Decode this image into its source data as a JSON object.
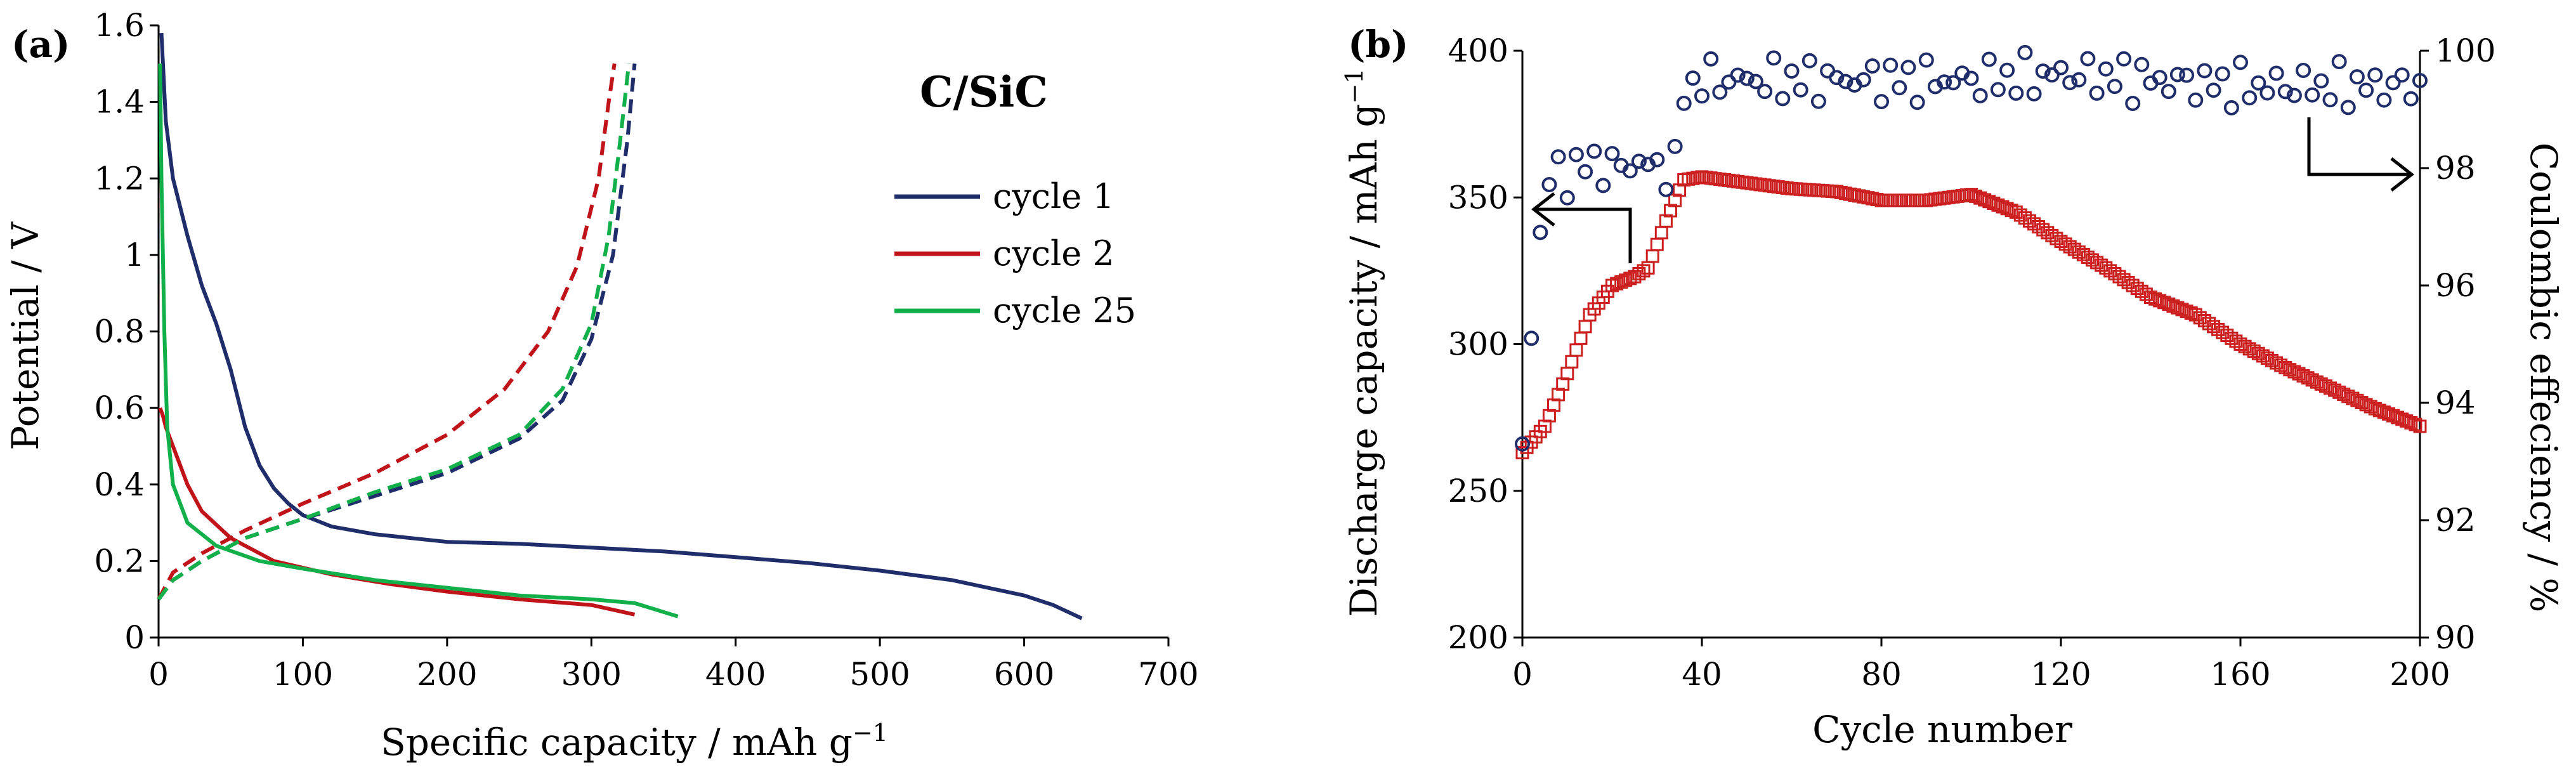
{
  "figure": {
    "panel_a": {
      "label": "(a)",
      "title": "C/SiC",
      "xlabel_main": "Specific capacity / mAh g",
      "xlabel_sup": "−1",
      "ylabel": "Potential / V",
      "legend": [
        "cycle 1",
        "cycle 2",
        "cycle 25"
      ]
    },
    "panel_b": {
      "label": "(b)",
      "xlabel": "Cycle number",
      "ylabel_left_main": "Discharge capacity / mAh g",
      "ylabel_left_sup": "−1",
      "ylabel_right": "Coulombic effeciency / %"
    }
  },
  "colors": {
    "cycle1": "#1f2d6b",
    "cycle2": "#c0141a",
    "cycle25": "#12b04a",
    "discharge": "#cc1f1f",
    "coulombic": "#1f2d6b",
    "axis": "#000000"
  },
  "chart_data": [
    {
      "type": "line",
      "panel": "a",
      "title": "C/SiC",
      "xlabel": "Specific capacity / mAh g−1",
      "ylabel": "Potential / V",
      "xlim": [
        0,
        700
      ],
      "ylim": [
        0,
        1.6
      ],
      "xticks": [
        0,
        100,
        200,
        300,
        400,
        500,
        600,
        700
      ],
      "yticks": [
        0,
        0.2,
        0.4,
        0.6,
        0.8,
        1,
        1.2,
        1.4,
        1.6
      ],
      "ytick_labels": [
        "0",
        "0.2",
        "0.4",
        "0.6",
        "0.8",
        "1",
        "1.2",
        "1.4",
        "1.6"
      ],
      "legend_position": "right-center",
      "series": [
        {
          "name": "cycle 1",
          "color_key": "cycle1",
          "style": "solid",
          "part": "discharge",
          "x": [
            2,
            5,
            10,
            20,
            30,
            40,
            50,
            60,
            70,
            80,
            90,
            100,
            120,
            150,
            200,
            250,
            300,
            350,
            400,
            450,
            500,
            550,
            600,
            620,
            640
          ],
          "y": [
            1.58,
            1.35,
            1.2,
            1.05,
            0.92,
            0.82,
            0.7,
            0.55,
            0.45,
            0.39,
            0.35,
            0.32,
            0.29,
            0.27,
            0.25,
            0.245,
            0.235,
            0.225,
            0.21,
            0.195,
            0.175,
            0.15,
            0.11,
            0.085,
            0.05
          ]
        },
        {
          "name": "cycle 1",
          "color_key": "cycle1",
          "style": "dashed",
          "part": "charge",
          "x": [
            0,
            10,
            30,
            60,
            100,
            150,
            200,
            250,
            280,
            300,
            315,
            325,
            330
          ],
          "y": [
            0.1,
            0.15,
            0.2,
            0.26,
            0.31,
            0.37,
            0.43,
            0.52,
            0.62,
            0.78,
            1.0,
            1.3,
            1.5
          ]
        },
        {
          "name": "cycle 2",
          "color_key": "cycle2",
          "style": "solid",
          "part": "discharge",
          "x": [
            1,
            3,
            5,
            10,
            20,
            30,
            50,
            80,
            120,
            160,
            200,
            250,
            300,
            330
          ],
          "y": [
            0.6,
            0.58,
            0.55,
            0.5,
            0.4,
            0.33,
            0.26,
            0.2,
            0.165,
            0.14,
            0.12,
            0.1,
            0.085,
            0.06
          ]
        },
        {
          "name": "cycle 2",
          "color_key": "cycle2",
          "style": "dashed",
          "part": "charge",
          "x": [
            0,
            10,
            30,
            60,
            100,
            150,
            200,
            240,
            270,
            290,
            305,
            312,
            316
          ],
          "y": [
            0.1,
            0.17,
            0.22,
            0.28,
            0.35,
            0.43,
            0.53,
            0.65,
            0.8,
            0.97,
            1.2,
            1.4,
            1.5
          ]
        },
        {
          "name": "cycle 25",
          "color_key": "cycle25",
          "style": "solid",
          "part": "discharge",
          "x": [
            1,
            2,
            4,
            6,
            10,
            20,
            40,
            70,
            100,
            150,
            200,
            250,
            300,
            330,
            360
          ],
          "y": [
            1.5,
            1.2,
            0.8,
            0.55,
            0.4,
            0.3,
            0.24,
            0.2,
            0.18,
            0.15,
            0.13,
            0.11,
            0.1,
            0.09,
            0.055
          ]
        },
        {
          "name": "cycle 25",
          "color_key": "cycle25",
          "style": "dashed",
          "part": "charge",
          "x": [
            0,
            10,
            30,
            60,
            100,
            150,
            200,
            250,
            280,
            300,
            312,
            320,
            326
          ],
          "y": [
            0.1,
            0.15,
            0.2,
            0.26,
            0.31,
            0.38,
            0.44,
            0.53,
            0.65,
            0.82,
            1.05,
            1.3,
            1.5
          ]
        }
      ]
    },
    {
      "type": "scatter",
      "panel": "b",
      "xlabel": "Cycle number",
      "ylabel": "Discharge capacity / mAh g−1",
      "ylabel_right": "Coulombic effeciency / %",
      "xlim": [
        0,
        200
      ],
      "ylim": [
        200,
        400
      ],
      "ylim_right": [
        90,
        100
      ],
      "xticks": [
        0,
        40,
        80,
        120,
        160,
        200
      ],
      "yticks": [
        200,
        250,
        300,
        350,
        400
      ],
      "yticks_right": [
        90,
        92,
        94,
        96,
        98,
        100
      ],
      "series": [
        {
          "name": "Discharge capacity",
          "axis": "left",
          "marker": "square",
          "color_key": "discharge",
          "x": [
            0,
            5,
            10,
            15,
            20,
            25,
            28,
            32,
            36,
            40,
            50,
            60,
            70,
            80,
            90,
            100,
            110,
            120,
            130,
            140,
            150,
            160,
            170,
            180,
            190,
            200
          ],
          "y": [
            263,
            272,
            290,
            310,
            320,
            323,
            326,
            342,
            356,
            357,
            355,
            353,
            352,
            349,
            349,
            351,
            345,
            335,
            326,
            316,
            310,
            300,
            292,
            285,
            278,
            272
          ]
        },
        {
          "name": "Coulombic efficiency",
          "axis": "right",
          "marker": "circle",
          "color_key": "coulombic",
          "x": [
            0,
            5,
            10,
            15,
            20,
            25,
            30,
            34,
            36,
            40,
            60,
            80,
            100,
            120,
            140,
            160,
            180,
            200
          ],
          "y": [
            93.3,
            97.8,
            97.9,
            98.1,
            98.0,
            98.1,
            98.0,
            98.0,
            99.3,
            99.5,
            99.5,
            99.5,
            99.5,
            99.6,
            99.5,
            99.4,
            99.4,
            99.4
          ]
        }
      ]
    }
  ]
}
